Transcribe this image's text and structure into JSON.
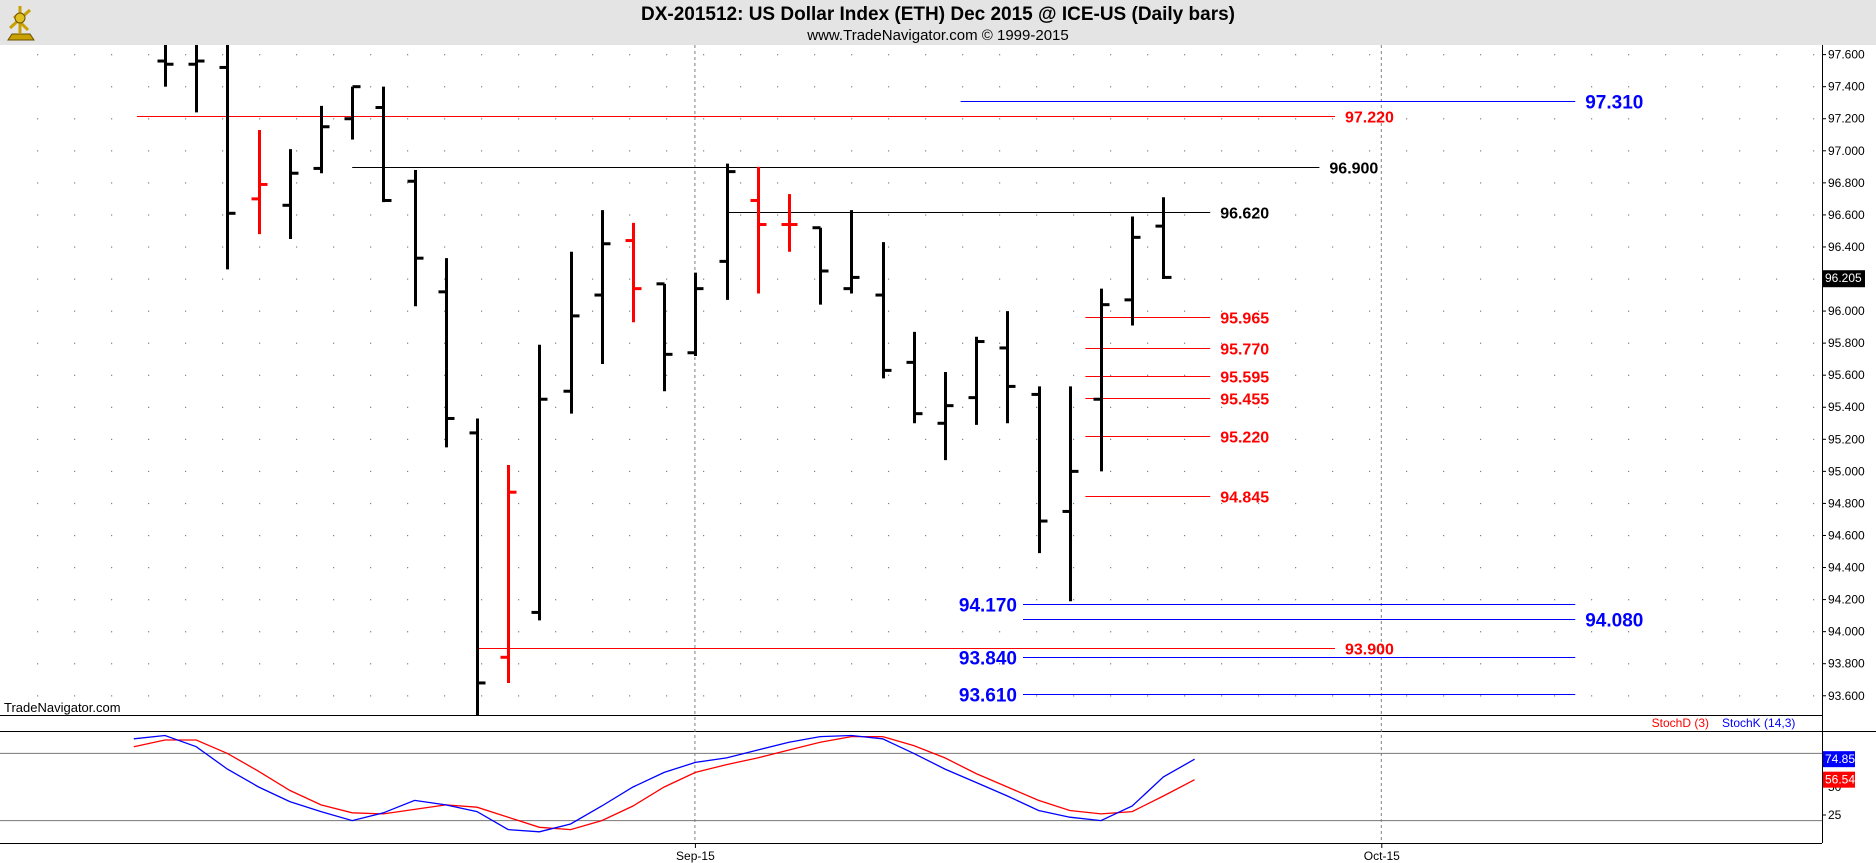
{
  "header": {
    "title": "DX-201512:  US Dollar Index (ETH) Dec 2015 @ ICE-US  (Daily bars)",
    "subtitle": "www.TradeNavigator.com © 1999-2015",
    "logo_icon": "sextant-logo-icon"
  },
  "watermark": "TradeNavigator.com",
  "last_price_label": "96.205",
  "colors": {
    "up_bar": "#000000",
    "down_bar": "#ff0000",
    "green_tick": "#00dd00",
    "blue_level": "#0000ff",
    "red_level": "#ff0000",
    "black_level": "#000000",
    "stoch_d": "#ff0000",
    "stoch_k": "#0000ff",
    "grid": "#808080"
  },
  "chart_data": {
    "type": "ohlc",
    "price_axis": {
      "ylim": [
        93.48,
        97.66
      ],
      "ticks": [
        "93.600",
        "93.800",
        "94.000",
        "94.200",
        "94.400",
        "94.600",
        "94.800",
        "95.000",
        "95.200",
        "95.400",
        "95.600",
        "95.800",
        "96.000",
        "96.200",
        "96.400",
        "96.600",
        "96.800",
        "97.000",
        "97.200",
        "97.400",
        "97.600"
      ]
    },
    "x_axis": {
      "date_ticks": [
        {
          "label": "Sep-15",
          "bar_index": 17
        },
        {
          "label": "Oct-15",
          "bar_index": 39
        }
      ],
      "bar_count": 46
    },
    "bars": [
      {
        "i": 0,
        "o": 97.56,
        "h": 97.66,
        "l": 97.4,
        "c": 97.54,
        "color": "black"
      },
      {
        "i": 1,
        "o": 97.54,
        "h": 97.66,
        "l": 97.24,
        "c": 97.56,
        "color": "black"
      },
      {
        "i": 2,
        "o": 97.52,
        "h": 97.66,
        "l": 96.26,
        "c": 96.61,
        "color": "black"
      },
      {
        "i": 3,
        "o": 96.7,
        "h": 97.13,
        "l": 96.48,
        "c": 96.79,
        "color": "red"
      },
      {
        "i": 4,
        "o": 96.66,
        "h": 97.01,
        "l": 96.45,
        "c": 96.86,
        "color": "black"
      },
      {
        "i": 5,
        "o": 96.89,
        "h": 97.28,
        "l": 96.86,
        "c": 97.15,
        "color": "black"
      },
      {
        "i": 6,
        "o": 97.2,
        "h": 97.4,
        "l": 97.07,
        "c": 97.4,
        "color": "black"
      },
      {
        "i": 7,
        "o": 97.27,
        "h": 97.4,
        "l": 96.68,
        "c": 96.69,
        "color": "black"
      },
      {
        "i": 8,
        "o": 96.81,
        "h": 96.88,
        "l": 96.03,
        "c": 96.33,
        "color": "black"
      },
      {
        "i": 9,
        "o": 96.12,
        "h": 96.33,
        "l": 95.15,
        "c": 95.33,
        "color": "black"
      },
      {
        "i": 10,
        "o": 95.24,
        "h": 95.33,
        "l": 93.48,
        "c": 93.68,
        "color": "black"
      },
      {
        "i": 11,
        "o": 93.84,
        "h": 95.04,
        "l": 93.68,
        "c": 94.87,
        "color": "red"
      },
      {
        "i": 12,
        "o": 94.12,
        "h": 95.79,
        "l": 94.07,
        "c": 95.45,
        "color": "black"
      },
      {
        "i": 13,
        "o": 95.5,
        "h": 96.37,
        "l": 95.36,
        "c": 95.97,
        "color": "black"
      },
      {
        "i": 14,
        "o": 96.1,
        "h": 96.63,
        "l": 95.67,
        "c": 96.42,
        "color": "black"
      },
      {
        "i": 15,
        "o": 96.44,
        "h": 96.55,
        "l": 95.93,
        "c": 96.14,
        "color": "red"
      },
      {
        "i": 16,
        "o": 96.17,
        "h": 96.17,
        "l": 95.5,
        "c": 95.73,
        "color": "black"
      },
      {
        "i": 17,
        "o": 95.74,
        "h": 96.24,
        "l": 95.72,
        "c": 96.14,
        "color": "black"
      },
      {
        "i": 18,
        "o": 96.31,
        "h": 96.92,
        "l": 96.07,
        "c": 96.87,
        "color": "black"
      },
      {
        "i": 19,
        "o": 96.69,
        "h": 96.9,
        "l": 96.11,
        "c": 96.54,
        "color": "red"
      },
      {
        "i": 20,
        "o": 96.54,
        "h": 96.73,
        "l": 96.37,
        "c": 96.54,
        "color": "red"
      },
      {
        "i": 21,
        "o": 96.52,
        "h": 96.52,
        "l": 96.04,
        "c": 96.25,
        "color": "black"
      },
      {
        "i": 22,
        "o": 96.14,
        "h": 96.63,
        "l": 96.11,
        "c": 96.21,
        "color": "black"
      },
      {
        "i": 23,
        "o": 96.1,
        "h": 96.43,
        "l": 95.58,
        "c": 95.63,
        "color": "black"
      },
      {
        "i": 24,
        "o": 95.68,
        "h": 95.87,
        "l": 95.3,
        "c": 95.36,
        "color": "black"
      },
      {
        "i": 25,
        "o": 95.3,
        "h": 95.62,
        "l": 95.07,
        "c": 95.41,
        "color": "black"
      },
      {
        "i": 26,
        "o": 95.46,
        "h": 95.84,
        "l": 95.29,
        "c": 95.81,
        "color": "black"
      },
      {
        "i": 27,
        "o": 95.77,
        "h": 96.0,
        "l": 95.3,
        "c": 95.53,
        "color": "black"
      },
      {
        "i": 28,
        "o": 95.48,
        "h": 95.53,
        "l": 94.49,
        "c": 94.69,
        "color": "black"
      },
      {
        "i": 29,
        "o": 94.75,
        "h": 95.53,
        "l": 94.19,
        "c": 95.0,
        "color": "black"
      },
      {
        "i": 30,
        "o": 95.45,
        "h": 96.14,
        "l": 95.0,
        "c": 96.04,
        "color": "black"
      },
      {
        "i": 31,
        "o": 96.07,
        "h": 96.59,
        "l": 95.91,
        "c": 96.46,
        "color": "black"
      },
      {
        "i": 32,
        "o": 96.53,
        "h": 96.71,
        "l": 96.2,
        "c": 96.21,
        "color": "black"
      }
    ],
    "levels": [
      {
        "value": 97.31,
        "label": "97.310",
        "color": "blue",
        "from_bar": 25.5,
        "to_bar": 45.2,
        "label_side": "right"
      },
      {
        "value": 97.22,
        "label": "97.220",
        "color": "red",
        "from_bar": -0.9,
        "to_bar": 37.5,
        "label_side": "right"
      },
      {
        "value": 96.9,
        "label": "96.900",
        "color": "black",
        "from_bar": 6.0,
        "to_bar": 37.0,
        "label_side": "right"
      },
      {
        "value": 96.62,
        "label": "96.620",
        "color": "black",
        "from_bar": 18.0,
        "to_bar": 33.5,
        "label_side": "right"
      },
      {
        "value": 95.965,
        "label": "95.965",
        "color": "red",
        "from_bar": 29.5,
        "to_bar": 33.5,
        "label_side": "right"
      },
      {
        "value": 95.77,
        "label": "95.770",
        "color": "red",
        "from_bar": 29.5,
        "to_bar": 33.5,
        "label_side": "right"
      },
      {
        "value": 95.595,
        "label": "95.595",
        "color": "red",
        "from_bar": 29.5,
        "to_bar": 33.5,
        "label_side": "right"
      },
      {
        "value": 95.455,
        "label": "95.455",
        "color": "red",
        "from_bar": 29.5,
        "to_bar": 33.5,
        "label_side": "right"
      },
      {
        "value": 95.22,
        "label": "95.220",
        "color": "red",
        "from_bar": 29.5,
        "to_bar": 33.5,
        "label_side": "right"
      },
      {
        "value": 94.845,
        "label": "94.845",
        "color": "red",
        "from_bar": 29.5,
        "to_bar": 33.5,
        "label_side": "right"
      },
      {
        "value": 94.17,
        "label": "94.170",
        "color": "blue",
        "from_bar": 27.5,
        "to_bar": 45.2,
        "label_side": "left"
      },
      {
        "value": 94.08,
        "label": "94.080",
        "color": "blue",
        "from_bar": 27.5,
        "to_bar": 45.2,
        "label_side": "right"
      },
      {
        "value": 93.9,
        "label": "93.900",
        "color": "red",
        "from_bar": 10.0,
        "to_bar": 37.5,
        "label_side": "right"
      },
      {
        "value": 93.84,
        "label": "93.840",
        "color": "blue",
        "from_bar": 27.5,
        "to_bar": 45.2,
        "label_side": "left"
      },
      {
        "value": 93.61,
        "label": "93.610",
        "color": "blue",
        "from_bar": 27.5,
        "to_bar": 45.2,
        "label_side": "left"
      }
    ],
    "stochastic": {
      "legend_d": "StochD (3)",
      "legend_k": "StochK (14,3)",
      "ylim": [
        0,
        100
      ],
      "ticks": [
        "25",
        "50"
      ],
      "level_lines": [
        80,
        20
      ],
      "last_k_label": "74.85",
      "last_d_label": "56.54",
      "k": [
        {
          "bar": -1.0,
          "v": 93
        },
        {
          "bar": 0,
          "v": 96
        },
        {
          "bar": 1,
          "v": 86
        },
        {
          "bar": 2,
          "v": 66
        },
        {
          "bar": 3,
          "v": 50
        },
        {
          "bar": 4,
          "v": 37
        },
        {
          "bar": 5,
          "v": 28
        },
        {
          "bar": 6,
          "v": 20
        },
        {
          "bar": 7,
          "v": 27
        },
        {
          "bar": 8,
          "v": 38
        },
        {
          "bar": 9,
          "v": 34
        },
        {
          "bar": 10,
          "v": 28
        },
        {
          "bar": 11,
          "v": 12
        },
        {
          "bar": 12,
          "v": 10
        },
        {
          "bar": 13,
          "v": 17
        },
        {
          "bar": 14,
          "v": 33
        },
        {
          "bar": 15,
          "v": 50
        },
        {
          "bar": 16,
          "v": 63
        },
        {
          "bar": 17,
          "v": 72
        },
        {
          "bar": 18,
          "v": 76
        },
        {
          "bar": 19,
          "v": 83
        },
        {
          "bar": 20,
          "v": 90
        },
        {
          "bar": 21,
          "v": 95
        },
        {
          "bar": 22,
          "v": 96
        },
        {
          "bar": 23,
          "v": 93
        },
        {
          "bar": 24,
          "v": 80
        },
        {
          "bar": 25,
          "v": 66
        },
        {
          "bar": 26,
          "v": 54
        },
        {
          "bar": 27,
          "v": 42
        },
        {
          "bar": 28,
          "v": 29
        },
        {
          "bar": 29,
          "v": 23
        },
        {
          "bar": 30,
          "v": 20
        },
        {
          "bar": 31,
          "v": 33
        },
        {
          "bar": 32,
          "v": 59
        },
        {
          "bar": 33,
          "v": 74.85
        }
      ],
      "d": [
        {
          "bar": -1.0,
          "v": 86
        },
        {
          "bar": 0,
          "v": 92
        },
        {
          "bar": 1,
          "v": 92
        },
        {
          "bar": 2,
          "v": 80
        },
        {
          "bar": 3,
          "v": 64
        },
        {
          "bar": 4,
          "v": 47
        },
        {
          "bar": 5,
          "v": 34
        },
        {
          "bar": 6,
          "v": 27
        },
        {
          "bar": 7,
          "v": 26
        },
        {
          "bar": 8,
          "v": 30
        },
        {
          "bar": 9,
          "v": 34
        },
        {
          "bar": 10,
          "v": 32
        },
        {
          "bar": 11,
          "v": 23
        },
        {
          "bar": 12,
          "v": 14
        },
        {
          "bar": 13,
          "v": 12
        },
        {
          "bar": 14,
          "v": 20
        },
        {
          "bar": 15,
          "v": 33
        },
        {
          "bar": 16,
          "v": 50
        },
        {
          "bar": 17,
          "v": 63
        },
        {
          "bar": 18,
          "v": 70
        },
        {
          "bar": 19,
          "v": 76
        },
        {
          "bar": 20,
          "v": 83
        },
        {
          "bar": 21,
          "v": 90
        },
        {
          "bar": 22,
          "v": 95
        },
        {
          "bar": 23,
          "v": 95
        },
        {
          "bar": 24,
          "v": 87
        },
        {
          "bar": 25,
          "v": 76
        },
        {
          "bar": 26,
          "v": 62
        },
        {
          "bar": 27,
          "v": 50
        },
        {
          "bar": 28,
          "v": 38
        },
        {
          "bar": 29,
          "v": 29
        },
        {
          "bar": 30,
          "v": 26
        },
        {
          "bar": 31,
          "v": 28
        },
        {
          "bar": 32,
          "v": 42
        },
        {
          "bar": 33,
          "v": 56.54
        }
      ]
    }
  }
}
